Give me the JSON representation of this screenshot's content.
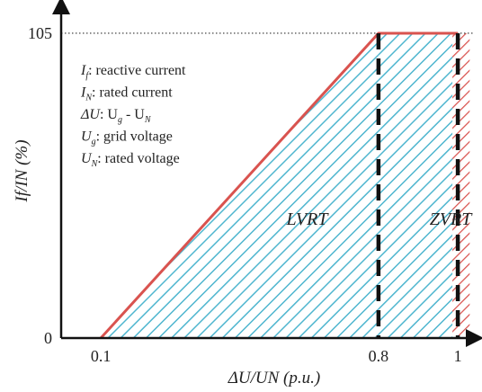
{
  "chart_data": {
    "type": "area",
    "title": "",
    "xlabel": "ΔU/UN (p.u.)",
    "ylabel": "If/IN (%)",
    "x_ticks": [
      "0.1",
      "0.8",
      "1"
    ],
    "y_ticks": [
      "0",
      "105"
    ],
    "xlim": [
      0,
      1.05
    ],
    "ylim": [
      0,
      105
    ],
    "lvrt_curve": {
      "x": [
        0.1,
        0.8,
        1.0
      ],
      "y": [
        0,
        105,
        105
      ]
    },
    "thresholds": [
      0.8,
      1.0
    ],
    "regions": [
      {
        "label": "LVRT",
        "x_range": [
          0.1,
          0.8
        ],
        "fill": "#4fb6cf"
      },
      {
        "label": "ZVRT",
        "x_range": [
          0.8,
          1.0
        ],
        "fill": "#4fb6cf"
      },
      {
        "label": "",
        "x_range": [
          1.0,
          1.03
        ],
        "fill": "#d9534f"
      }
    ],
    "legend_placement": "top-left",
    "legend": [
      {
        "sym": "I",
        "sub": "f",
        "text": ": reactive current"
      },
      {
        "sym": "I",
        "sub": "N",
        "text": ": rated current"
      },
      {
        "sym": "ΔU",
        "sub": "",
        "text": ": U",
        "sub2": "g",
        "text2": " - U",
        "sub3": "N",
        "text3": ""
      },
      {
        "sym": "U",
        "sub": "g",
        "text": ": grid voltage"
      },
      {
        "sym": "U",
        "sub": "N",
        "text": ": rated voltage"
      }
    ],
    "colors": {
      "curve": "#d9534f",
      "hatch": "#4fb6cf",
      "axis": "#111111",
      "threshold": "#111111"
    },
    "grid": false,
    "reference_line_at_y": 105
  }
}
